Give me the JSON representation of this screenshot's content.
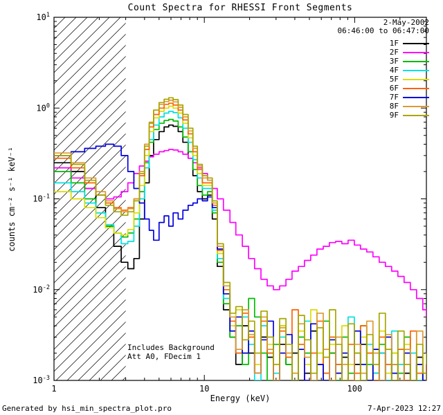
{
  "footer": {
    "generated_by": "Generated by hsi_min_spectra_plot.pro",
    "timestamp": "7-Apr-2023 12:27"
  },
  "chart_data": {
    "type": "line",
    "subtype": "step-histogram",
    "title": "Count Spectra for RHESSI Front Segments",
    "xlabel": "Energy (keV)",
    "ylabel": "counts cm⁻² s⁻¹ keV⁻¹",
    "x_scale": "log",
    "y_scale": "log",
    "xlim": [
      1,
      300
    ],
    "ylim": [
      0.001,
      10
    ],
    "grid": false,
    "legend_position": "upper-right",
    "x_ticks": [
      {
        "value": 1,
        "label": "1"
      },
      {
        "value": 10,
        "label": "10"
      },
      {
        "value": 100,
        "label": "100"
      }
    ],
    "y_ticks": [
      {
        "value": 10,
        "base": "10",
        "exponent": "1"
      },
      {
        "value": 1,
        "base": "10",
        "exponent": "0"
      },
      {
        "value": 0.1,
        "base": "10",
        "exponent": "-1"
      },
      {
        "value": 0.01,
        "base": "10",
        "exponent": "-2"
      },
      {
        "value": 0.001,
        "base": "10",
        "exponent": "-3"
      }
    ],
    "hatched_region_kev": [
      1,
      3
    ],
    "annotations": {
      "date": "2-May-2002",
      "time_range": "06:46:00 to 06:47:00",
      "background_note": "Includes Background",
      "attenuator_note": "Att A0, FDecim 1"
    },
    "x_bin_edges_kev": [
      1.0,
      1.3,
      1.6,
      1.9,
      2.2,
      2.5,
      2.8,
      3.1,
      3.4,
      3.7,
      4.0,
      4.3,
      4.6,
      5.0,
      5.4,
      5.8,
      6.2,
      6.7,
      7.2,
      7.8,
      8.4,
      9.0,
      9.7,
      10.5,
      11.3,
      12.2,
      13.4,
      14.8,
      16.2,
      17.9,
      19.7,
      21.6,
      23.8,
      26.2,
      28.8,
      31.7,
      34.9,
      38.3,
      42.2,
      46.4,
      51.0,
      56.1,
      61.8,
      67.9,
      74.7,
      82.2,
      90.4,
      99.5,
      109.4,
      120.3,
      132.4,
      145.6,
      160.2,
      176.2,
      193.8,
      213.2,
      234.5,
      258.0,
      283.8,
      300.0
    ],
    "series": [
      {
        "name": "1F",
        "color": "#000000",
        "values": [
          0.25,
          0.2,
          0.13,
          0.08,
          0.05,
          0.03,
          0.02,
          0.017,
          0.022,
          0.06,
          0.15,
          0.3,
          0.45,
          0.55,
          0.62,
          0.65,
          0.63,
          0.55,
          0.42,
          0.28,
          0.18,
          0.12,
          0.1,
          0.11,
          0.06,
          0.018,
          0.006,
          0.003,
          0.0015,
          0.004,
          0.002,
          0.0012,
          0.003,
          0.0018,
          0.001,
          0.0025,
          0.0015,
          0.002,
          0.001,
          0.0012,
          0.0035,
          0.0015,
          0.001,
          0.002,
          0.0012,
          0.0018,
          0.001,
          0.0015,
          0.0025,
          0.001,
          0.0012,
          0.002,
          0.001,
          0.0015,
          0.001,
          0.0012,
          0.001,
          0.0018,
          0.001,
          0.001
        ]
      },
      {
        "name": "2F",
        "color": "#FF00FF",
        "values": [
          0.22,
          0.17,
          0.13,
          0.11,
          0.1,
          0.105,
          0.12,
          0.15,
          0.19,
          0.23,
          0.26,
          0.29,
          0.31,
          0.33,
          0.34,
          0.35,
          0.345,
          0.33,
          0.31,
          0.28,
          0.25,
          0.22,
          0.19,
          0.16,
          0.13,
          0.1,
          0.075,
          0.055,
          0.04,
          0.03,
          0.022,
          0.017,
          0.013,
          0.011,
          0.01,
          0.011,
          0.013,
          0.016,
          0.018,
          0.021,
          0.024,
          0.028,
          0.03,
          0.033,
          0.034,
          0.032,
          0.035,
          0.031,
          0.028,
          0.026,
          0.023,
          0.02,
          0.018,
          0.016,
          0.014,
          0.012,
          0.01,
          0.008,
          0.006,
          0.005
        ]
      },
      {
        "name": "3F",
        "color": "#00BB00",
        "values": [
          0.2,
          0.15,
          0.1,
          0.07,
          0.05,
          0.042,
          0.038,
          0.042,
          0.06,
          0.12,
          0.25,
          0.42,
          0.58,
          0.68,
          0.73,
          0.75,
          0.72,
          0.62,
          0.48,
          0.33,
          0.21,
          0.14,
          0.11,
          0.12,
          0.07,
          0.02,
          0.007,
          0.003,
          0.004,
          0.0015,
          0.008,
          0.005,
          0.002,
          0.001,
          0.0025,
          0.004,
          0.0015,
          0.001,
          0.003,
          0.002,
          0.001,
          0.0015,
          0.0045,
          0.002,
          0.001,
          0.003,
          0.0012,
          0.002,
          0.004,
          0.0015,
          0.001,
          0.0025,
          0.001,
          0.002,
          0.0012,
          0.003,
          0.001,
          0.0015,
          0.001,
          0.002
        ]
      },
      {
        "name": "4F",
        "color": "#00E0E0",
        "values": [
          0.15,
          0.12,
          0.09,
          0.07,
          0.052,
          0.042,
          0.032,
          0.034,
          0.05,
          0.1,
          0.22,
          0.45,
          0.65,
          0.8,
          0.88,
          0.92,
          0.89,
          0.78,
          0.6,
          0.42,
          0.27,
          0.17,
          0.13,
          0.13,
          0.075,
          0.022,
          0.008,
          0.0035,
          0.002,
          0.005,
          0.0025,
          0.001,
          0.004,
          0.002,
          0.0012,
          0.003,
          0.0018,
          0.001,
          0.0025,
          0.0045,
          0.001,
          0.002,
          0.0012,
          0.003,
          0.0015,
          0.001,
          0.005,
          0.002,
          0.001,
          0.0025,
          0.0012,
          0.002,
          0.001,
          0.0035,
          0.0015,
          0.001,
          0.002,
          0.001,
          0.0012,
          0.001
        ]
      },
      {
        "name": "5F",
        "color": "#DCDC00",
        "values": [
          0.12,
          0.1,
          0.08,
          0.062,
          0.048,
          0.042,
          0.04,
          0.046,
          0.07,
          0.14,
          0.3,
          0.55,
          0.78,
          0.92,
          1.0,
          1.05,
          1.0,
          0.88,
          0.68,
          0.47,
          0.3,
          0.19,
          0.14,
          0.14,
          0.08,
          0.025,
          0.009,
          0.004,
          0.006,
          0.002,
          0.0035,
          0.0015,
          0.005,
          0.0025,
          0.001,
          0.004,
          0.002,
          0.0012,
          0.0035,
          0.0015,
          0.006,
          0.002,
          0.001,
          0.0025,
          0.0012,
          0.004,
          0.0015,
          0.001,
          0.003,
          0.002,
          0.001,
          0.0035,
          0.0012,
          0.002,
          0.001,
          0.0025,
          0.001,
          0.0015,
          0.001,
          0.002
        ]
      },
      {
        "name": "6F",
        "color": "#FF6000",
        "values": [
          0.28,
          0.22,
          0.15,
          0.11,
          0.09,
          0.08,
          0.075,
          0.08,
          0.1,
          0.18,
          0.35,
          0.62,
          0.85,
          1.0,
          1.1,
          1.13,
          1.08,
          0.95,
          0.74,
          0.52,
          0.33,
          0.21,
          0.15,
          0.15,
          0.085,
          0.027,
          0.01,
          0.0045,
          0.002,
          0.0055,
          0.003,
          0.0012,
          0.0045,
          0.002,
          0.001,
          0.0035,
          0.0018,
          0.006,
          0.0025,
          0.001,
          0.002,
          0.0045,
          0.0012,
          0.003,
          0.0015,
          0.001,
          0.0025,
          0.0012,
          0.004,
          0.002,
          0.001,
          0.003,
          0.0015,
          0.001,
          0.0022,
          0.001,
          0.0035,
          0.0012,
          0.001,
          0.0015
        ]
      },
      {
        "name": "7F",
        "color": "#0000DD",
        "values": [
          0.3,
          0.33,
          0.36,
          0.38,
          0.4,
          0.38,
          0.3,
          0.2,
          0.13,
          0.09,
          0.06,
          0.045,
          0.035,
          0.055,
          0.065,
          0.05,
          0.07,
          0.06,
          0.075,
          0.085,
          0.09,
          0.1,
          0.095,
          0.105,
          0.08,
          0.028,
          0.009,
          0.0035,
          0.005,
          0.002,
          0.0035,
          0.0012,
          0.0028,
          0.0045,
          0.001,
          0.002,
          0.0032,
          0.001,
          0.0022,
          0.001,
          0.0042,
          0.0015,
          0.001,
          0.0028,
          0.0012,
          0.002,
          0.001,
          0.0035,
          0.0015,
          0.001,
          0.0022,
          0.001,
          0.003,
          0.0012,
          0.001,
          0.002,
          0.001,
          0.0015,
          0.001,
          0.0012
        ]
      },
      {
        "name": "8F",
        "color": "#DD9933",
        "values": [
          0.32,
          0.25,
          0.17,
          0.12,
          0.095,
          0.078,
          0.072,
          0.078,
          0.1,
          0.2,
          0.4,
          0.7,
          0.95,
          1.1,
          1.18,
          1.22,
          1.17,
          1.02,
          0.8,
          0.56,
          0.36,
          0.23,
          0.17,
          0.16,
          0.09,
          0.03,
          0.011,
          0.005,
          0.0022,
          0.006,
          0.0032,
          0.0012,
          0.005,
          0.0022,
          0.001,
          0.0038,
          0.002,
          0.0012,
          0.0042,
          0.0018,
          0.001,
          0.0055,
          0.0022,
          0.001,
          0.003,
          0.0015,
          0.001,
          0.0025,
          0.0012,
          0.0045,
          0.002,
          0.001,
          0.0032,
          0.0015,
          0.001,
          0.0022,
          0.001,
          0.0035,
          0.0012,
          0.001
        ]
      },
      {
        "name": "9F",
        "color": "#A6A600",
        "values": [
          0.3,
          0.24,
          0.16,
          0.11,
          0.085,
          0.072,
          0.066,
          0.072,
          0.095,
          0.19,
          0.38,
          0.68,
          0.95,
          1.15,
          1.25,
          1.3,
          1.24,
          1.08,
          0.85,
          0.6,
          0.38,
          0.24,
          0.18,
          0.17,
          0.095,
          0.032,
          0.012,
          0.0055,
          0.0065,
          0.0028,
          0.0045,
          0.002,
          0.0058,
          0.003,
          0.0015,
          0.0048,
          0.0025,
          0.001,
          0.0052,
          0.0028,
          0.0012,
          0.0038,
          0.0018,
          0.006,
          0.0025,
          0.001,
          0.0042,
          0.002,
          0.001,
          0.0032,
          0.0015,
          0.0055,
          0.0022,
          0.001,
          0.0035,
          0.0015,
          0.001,
          0.0025,
          0.0012,
          0.001
        ]
      }
    ]
  }
}
